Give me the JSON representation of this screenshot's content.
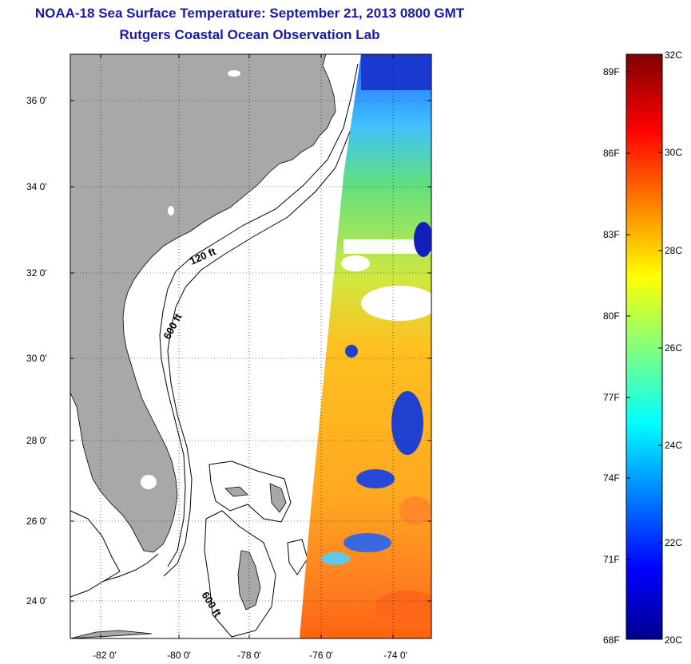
{
  "header": {
    "title": "NOAA-18 Sea Surface Temperature:  September 21, 2013 0800 GMT",
    "subtitle": "Rutgers Coastal Ocean Observation Lab"
  },
  "map": {
    "lat_ticks": [
      "36 0'",
      "34 0'",
      "32 0'",
      "30 0'",
      "28 0'",
      "26 0'",
      "24 0'"
    ],
    "lon_ticks": [
      "-82 0'",
      "-80 0'",
      "-78 0'",
      "-76 0'",
      "-74 0'"
    ],
    "contour_labels": [
      "120 ft",
      "600 ft",
      "600 ft"
    ],
    "land_color": "#a8a8a8"
  },
  "colorbar": {
    "f_labels": [
      "89F",
      "86F",
      "83F",
      "80F",
      "77F",
      "74F",
      "71F",
      "68F"
    ],
    "c_labels": [
      "32C",
      "30C",
      "28C",
      "26C",
      "24C",
      "22C",
      "20C"
    ]
  }
}
